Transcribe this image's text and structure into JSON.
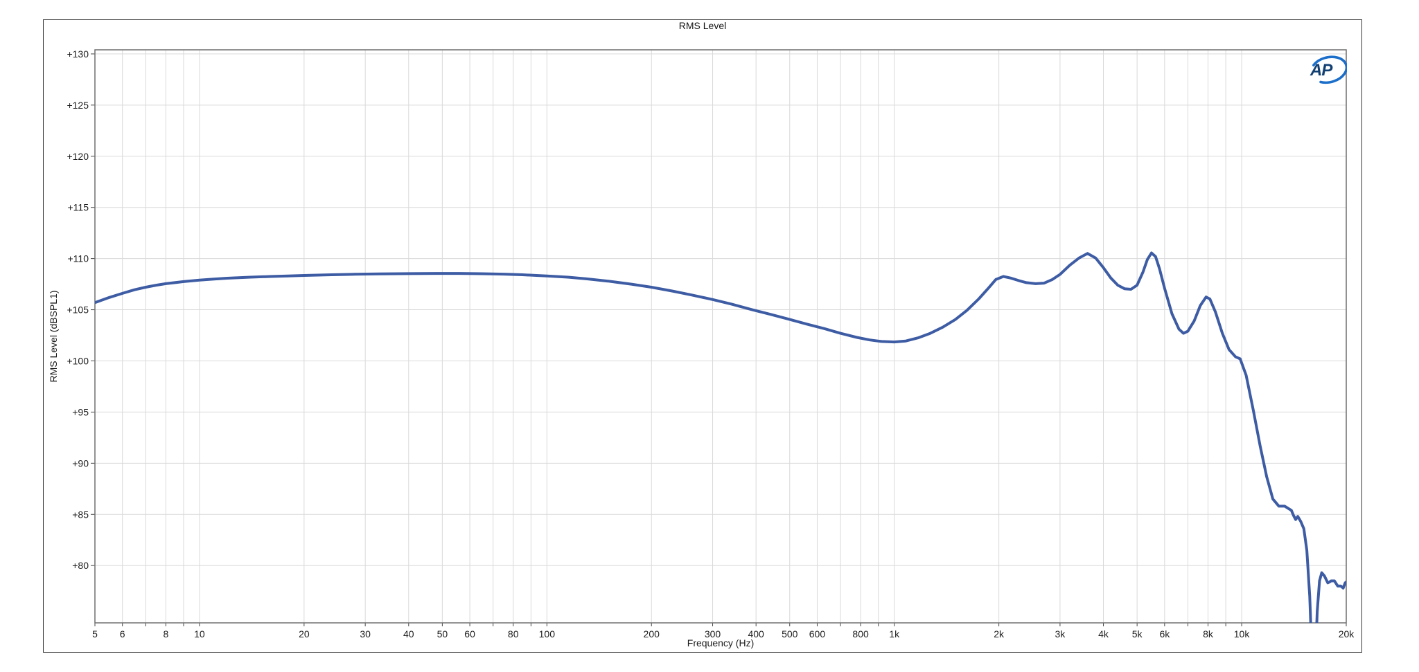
{
  "header": {
    "title": "RMS Level"
  },
  "logo": {
    "text": "AP",
    "letters_color": "#123F72",
    "swoosh_color": "#1B6EC9"
  },
  "chart_data": {
    "type": "line",
    "title": "RMS Level",
    "xlabel": "Frequency (Hz)",
    "ylabel": "RMS Level (dBSPL1)",
    "x_scale": "log",
    "xlim": [
      5,
      20000
    ],
    "ylim": [
      74.4,
      130.4
    ],
    "grid": true,
    "legend": "none",
    "background_color": "#FFFFFF",
    "grid_color": "#D9D9D9",
    "axis_box_color": "#6F6F6F",
    "tick_color": "#444444",
    "text_color": "#1C1C1C",
    "y_ticks": [
      {
        "value": 130,
        "label": "+130"
      },
      {
        "value": 125,
        "label": "+125"
      },
      {
        "value": 120,
        "label": "+120"
      },
      {
        "value": 115,
        "label": "+115"
      },
      {
        "value": 110,
        "label": "+110"
      },
      {
        "value": 105,
        "label": "+105"
      },
      {
        "value": 100,
        "label": "+100"
      },
      {
        "value": 95,
        "label": "+95"
      },
      {
        "value": 90,
        "label": "+90"
      },
      {
        "value": 85,
        "label": "+85"
      },
      {
        "value": 80,
        "label": "+80"
      }
    ],
    "x_ticks": [
      {
        "value": 5,
        "label": "5"
      },
      {
        "value": 6,
        "label": "6"
      },
      {
        "value": 8,
        "label": "8"
      },
      {
        "value": 10,
        "label": "10"
      },
      {
        "value": 20,
        "label": "20"
      },
      {
        "value": 30,
        "label": "30"
      },
      {
        "value": 40,
        "label": "40"
      },
      {
        "value": 50,
        "label": "50"
      },
      {
        "value": 60,
        "label": "60"
      },
      {
        "value": 80,
        "label": "80"
      },
      {
        "value": 100,
        "label": "100"
      },
      {
        "value": 200,
        "label": "200"
      },
      {
        "value": 300,
        "label": "300"
      },
      {
        "value": 400,
        "label": "400"
      },
      {
        "value": 500,
        "label": "500"
      },
      {
        "value": 600,
        "label": "600"
      },
      {
        "value": 800,
        "label": "800"
      },
      {
        "value": 1000,
        "label": "1k"
      },
      {
        "value": 2000,
        "label": "2k"
      },
      {
        "value": 3000,
        "label": "3k"
      },
      {
        "value": 4000,
        "label": "4k"
      },
      {
        "value": 5000,
        "label": "5k"
      },
      {
        "value": 6000,
        "label": "6k"
      },
      {
        "value": 8000,
        "label": "8k"
      },
      {
        "value": 10000,
        "label": "10k"
      },
      {
        "value": 20000,
        "label": "20k"
      }
    ],
    "grid_frequencies": [
      5,
      6,
      7,
      8,
      9,
      10,
      20,
      30,
      40,
      50,
      60,
      70,
      80,
      90,
      100,
      200,
      300,
      400,
      500,
      600,
      700,
      800,
      900,
      1000,
      2000,
      3000,
      4000,
      5000,
      6000,
      7000,
      8000,
      9000,
      10000,
      20000
    ],
    "series": [
      {
        "name": "RMS Level",
        "color": "#3D5CA4",
        "line_width": 4,
        "points": [
          [
            5,
            105.7
          ],
          [
            5.5,
            106.2
          ],
          [
            6,
            106.6
          ],
          [
            6.5,
            106.95
          ],
          [
            7,
            107.2
          ],
          [
            7.5,
            107.4
          ],
          [
            8,
            107.55
          ],
          [
            9,
            107.75
          ],
          [
            10,
            107.9
          ],
          [
            11,
            108.0
          ],
          [
            12,
            108.08
          ],
          [
            14,
            108.18
          ],
          [
            16,
            108.25
          ],
          [
            18,
            108.3
          ],
          [
            20,
            108.35
          ],
          [
            24,
            108.42
          ],
          [
            28,
            108.47
          ],
          [
            33,
            108.5
          ],
          [
            40,
            108.53
          ],
          [
            48,
            108.55
          ],
          [
            56,
            108.55
          ],
          [
            65,
            108.52
          ],
          [
            75,
            108.48
          ],
          [
            85,
            108.42
          ],
          [
            100,
            108.3
          ],
          [
            115,
            108.18
          ],
          [
            130,
            108.02
          ],
          [
            150,
            107.8
          ],
          [
            175,
            107.5
          ],
          [
            200,
            107.2
          ],
          [
            230,
            106.82
          ],
          [
            260,
            106.45
          ],
          [
            300,
            106.0
          ],
          [
            340,
            105.55
          ],
          [
            390,
            105.0
          ],
          [
            440,
            104.55
          ],
          [
            500,
            104.05
          ],
          [
            560,
            103.6
          ],
          [
            630,
            103.15
          ],
          [
            700,
            102.7
          ],
          [
            780,
            102.3
          ],
          [
            850,
            102.05
          ],
          [
            920,
            101.9
          ],
          [
            1000,
            101.85
          ],
          [
            1080,
            101.95
          ],
          [
            1170,
            102.25
          ],
          [
            1270,
            102.7
          ],
          [
            1380,
            103.3
          ],
          [
            1500,
            104.05
          ],
          [
            1620,
            104.95
          ],
          [
            1750,
            106.05
          ],
          [
            1870,
            107.15
          ],
          [
            1960,
            107.95
          ],
          [
            2060,
            108.25
          ],
          [
            2160,
            108.1
          ],
          [
            2280,
            107.85
          ],
          [
            2400,
            107.65
          ],
          [
            2550,
            107.55
          ],
          [
            2700,
            107.6
          ],
          [
            2850,
            107.95
          ],
          [
            3000,
            108.45
          ],
          [
            3200,
            109.35
          ],
          [
            3400,
            110.05
          ],
          [
            3600,
            110.5
          ],
          [
            3800,
            110.05
          ],
          [
            4000,
            109.1
          ],
          [
            4200,
            108.1
          ],
          [
            4400,
            107.4
          ],
          [
            4600,
            107.05
          ],
          [
            4800,
            107.0
          ],
          [
            5000,
            107.4
          ],
          [
            5200,
            108.7
          ],
          [
            5350,
            109.9
          ],
          [
            5500,
            110.55
          ],
          [
            5650,
            110.2
          ],
          [
            5800,
            109.0
          ],
          [
            6000,
            107.1
          ],
          [
            6300,
            104.6
          ],
          [
            6600,
            103.1
          ],
          [
            6800,
            102.7
          ],
          [
            7000,
            102.9
          ],
          [
            7300,
            103.9
          ],
          [
            7600,
            105.4
          ],
          [
            7900,
            106.25
          ],
          [
            8100,
            106.05
          ],
          [
            8400,
            104.8
          ],
          [
            8800,
            102.7
          ],
          [
            9200,
            101.1
          ],
          [
            9600,
            100.4
          ],
          [
            9900,
            100.2
          ],
          [
            10300,
            98.6
          ],
          [
            10800,
            95.2
          ],
          [
            11300,
            91.7
          ],
          [
            11800,
            88.7
          ],
          [
            12300,
            86.5
          ],
          [
            12800,
            85.8
          ],
          [
            13300,
            85.8
          ],
          [
            13900,
            85.4
          ],
          [
            14100,
            84.9
          ],
          [
            14300,
            84.5
          ],
          [
            14500,
            84.8
          ],
          [
            14800,
            84.3
          ],
          [
            15100,
            83.6
          ],
          [
            15400,
            81.5
          ],
          [
            15700,
            77.0
          ],
          [
            15900,
            72.0
          ],
          [
            16050,
            68.0
          ],
          [
            16250,
            69.5
          ],
          [
            16500,
            75.5
          ],
          [
            16750,
            78.5
          ],
          [
            17000,
            79.3
          ],
          [
            17300,
            79.0
          ],
          [
            17700,
            78.3
          ],
          [
            18100,
            78.5
          ],
          [
            18500,
            78.5
          ],
          [
            18900,
            78.0
          ],
          [
            19300,
            78.0
          ],
          [
            19600,
            77.8
          ],
          [
            19850,
            78.3
          ],
          [
            20000,
            78.4
          ]
        ]
      }
    ]
  }
}
